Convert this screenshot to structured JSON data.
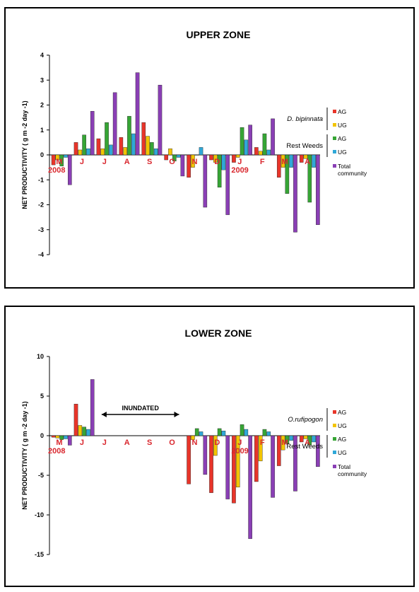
{
  "chart_data": [
    {
      "type": "bar",
      "title": "UPPER ZONE",
      "ylabel": "NET PRODUCTIVITY ( g m -2 day -1)",
      "ylim": [
        -4,
        4
      ],
      "yticks": [
        "4",
        "3",
        "2",
        "1",
        "0",
        "-1",
        "-2",
        "-3",
        "-4"
      ],
      "categories": [
        "M",
        "J",
        "J",
        "A",
        "S",
        "O",
        "N",
        "D",
        "J",
        "F",
        "M",
        "A"
      ],
      "year_labels": [
        {
          "text": "2008",
          "index": 0
        },
        {
          "text": "2009",
          "index": 8
        }
      ],
      "legend_group_labels": [
        "D. bipinnata",
        "Rest Weeds"
      ],
      "legend_total_label": [
        "Total",
        "community"
      ],
      "series": [
        {
          "name": "AG",
          "values": [
            -0.4,
            0.5,
            0.65,
            0.7,
            1.3,
            -0.2,
            -0.9,
            -0.2,
            -0.3,
            0.3,
            -0.9,
            -0.3
          ]
        },
        {
          "name": "UG",
          "values": [
            -0.2,
            0.2,
            0.25,
            0.3,
            0.75,
            0.25,
            -0.5,
            -0.3,
            -0.1,
            0.15,
            -0.5,
            -0.15
          ]
        },
        {
          "name": "AG",
          "values": [
            -0.45,
            0.8,
            1.3,
            1.55,
            0.5,
            -0.25,
            0.0,
            -1.3,
            1.1,
            0.85,
            -1.55,
            -1.9
          ]
        },
        {
          "name": "UG",
          "values": [
            -0.1,
            0.25,
            0.4,
            0.85,
            0.25,
            -0.1,
            0.3,
            -0.6,
            0.6,
            0.2,
            -0.5,
            -0.5
          ]
        },
        {
          "name": "Total community",
          "values": [
            -1.2,
            1.75,
            2.5,
            3.3,
            2.8,
            -0.85,
            -2.1,
            -2.4,
            1.2,
            1.45,
            -3.1,
            -2.8
          ]
        }
      ]
    },
    {
      "type": "bar",
      "title": "LOWER ZONE",
      "ylabel": "NET PRODUCTIVITY ( g m -2 day -1)",
      "ylim": [
        -15,
        10
      ],
      "yticks": [
        "10",
        "5",
        "0",
        "-5",
        "-10",
        "-15"
      ],
      "categories": [
        "M",
        "J",
        "J",
        "A",
        "S",
        "O",
        "N",
        "D",
        "J",
        "F",
        "M",
        "A"
      ],
      "year_labels": [
        {
          "text": "2008",
          "index": 0
        },
        {
          "text": "2009",
          "index": 8
        }
      ],
      "annotation": "INUNDATED",
      "legend_group_labels": [
        "O.rufipogon",
        "Rest Weeds"
      ],
      "legend_total_label": [
        "Total",
        "community"
      ],
      "series": [
        {
          "name": "AG",
          "values": [
            -0.2,
            4.0,
            null,
            null,
            null,
            null,
            -6.1,
            -7.2,
            -8.5,
            -5.8,
            -3.8,
            -0.8
          ]
        },
        {
          "name": "UG",
          "values": [
            -0.3,
            1.3,
            null,
            null,
            null,
            null,
            -0.5,
            -2.5,
            -6.5,
            -3.2,
            -1.8,
            -0.4
          ]
        },
        {
          "name": "AG",
          "values": [
            -0.5,
            1.1,
            null,
            null,
            null,
            null,
            0.9,
            0.9,
            1.4,
            0.8,
            -1.0,
            -1.2
          ]
        },
        {
          "name": "UG",
          "values": [
            -0.4,
            0.8,
            null,
            null,
            null,
            null,
            0.5,
            0.6,
            0.8,
            0.5,
            -0.6,
            -0.8
          ]
        },
        {
          "name": "Total community",
          "values": [
            -1.2,
            7.1,
            null,
            null,
            null,
            null,
            -4.9,
            -8.0,
            -13.0,
            -7.8,
            -7.0,
            -3.9
          ]
        }
      ]
    }
  ],
  "colors": {
    "s0": "#e8352a",
    "s1": "#f2c400",
    "s2": "#36a535",
    "s3": "#2fa8d8",
    "s4": "#8a3fb5",
    "month_label": "#d9272e",
    "axis": "#000000"
  }
}
